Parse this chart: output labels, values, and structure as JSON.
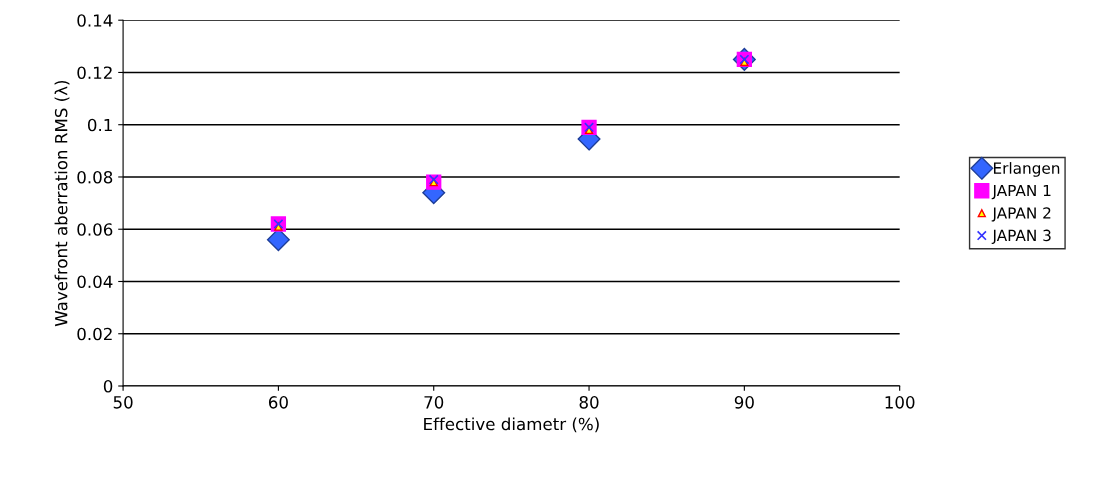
{
  "chart_data": {
    "type": "scatter",
    "xlabel": "Effective diametr (%)",
    "ylabel": "Wavefront aberration RMS (λ)",
    "x": [
      60,
      70,
      80,
      90
    ],
    "series": [
      {
        "name": "Erlangen",
        "color": "#3366ff",
        "marker": "diamond",
        "values": [
          0.056,
          0.074,
          0.0945,
          0.125
        ]
      },
      {
        "name": "JAPAN 1",
        "color": "#ff00ff",
        "marker": "square",
        "values": [
          0.062,
          0.078,
          0.099,
          0.125
        ]
      },
      {
        "name": "JAPAN 2",
        "color": "#ffff00",
        "marker": "triangle",
        "values": [
          0.061,
          0.078,
          0.098,
          0.124
        ]
      },
      {
        "name": "JAPAN 3",
        "color": "#3333ff",
        "marker": "cross",
        "values": [
          0.062,
          0.079,
          0.099,
          0.125
        ]
      }
    ],
    "xlim": [
      50,
      100
    ],
    "xticks": [
      50,
      60,
      70,
      80,
      90,
      100
    ],
    "ylim": [
      0,
      0.14
    ],
    "yticks": [
      0,
      0.02,
      0.04,
      0.06,
      0.08,
      0.1,
      0.12,
      0.14
    ],
    "grid": "y",
    "legend": "right"
  }
}
